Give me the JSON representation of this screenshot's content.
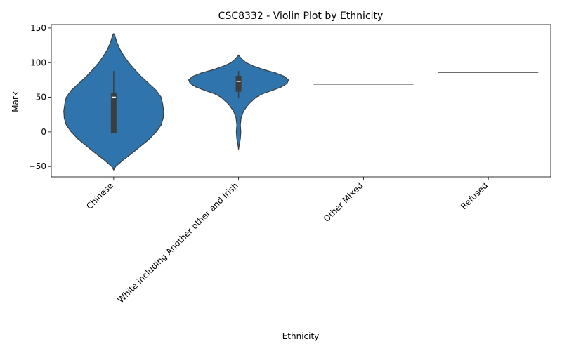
{
  "chart_data": {
    "type": "violin",
    "title": "CSC8332 - Violin Plot by Ethnicity",
    "xlabel": "Ethnicity",
    "ylabel": "Mark",
    "ylim": [
      -65,
      155
    ],
    "yticks": [
      -50,
      0,
      50,
      100,
      150
    ],
    "categories": [
      "Chinese",
      "White including Another other and Irish",
      "Other Mixed",
      "Refused"
    ],
    "violins": [
      {
        "category": "Chinese",
        "profile": [
          [
            -55,
            0
          ],
          [
            -50,
            0.04
          ],
          [
            -40,
            0.2
          ],
          [
            -30,
            0.38
          ],
          [
            -20,
            0.55
          ],
          [
            -10,
            0.72
          ],
          [
            0,
            0.85
          ],
          [
            10,
            0.95
          ],
          [
            20,
            0.99
          ],
          [
            30,
            1.0
          ],
          [
            40,
            0.98
          ],
          [
            50,
            0.95
          ],
          [
            60,
            0.85
          ],
          [
            70,
            0.7
          ],
          [
            80,
            0.55
          ],
          [
            90,
            0.42
          ],
          [
            100,
            0.3
          ],
          [
            110,
            0.2
          ],
          [
            120,
            0.12
          ],
          [
            130,
            0.06
          ],
          [
            140,
            0.02
          ],
          [
            142,
            0
          ]
        ],
        "box": {
          "q1": -2,
          "median": 50,
          "q3": 56,
          "whisker_low": -2,
          "whisker_high": 88
        }
      },
      {
        "category": "White including Another other and Irish",
        "profile": [
          [
            -25,
            0
          ],
          [
            -20,
            0.01
          ],
          [
            -10,
            0.035
          ],
          [
            0,
            0.045
          ],
          [
            10,
            0.035
          ],
          [
            20,
            0.05
          ],
          [
            30,
            0.1
          ],
          [
            40,
            0.2
          ],
          [
            50,
            0.35
          ],
          [
            55,
            0.48
          ],
          [
            60,
            0.68
          ],
          [
            65,
            0.86
          ],
          [
            70,
            0.97
          ],
          [
            75,
            1.0
          ],
          [
            80,
            0.92
          ],
          [
            85,
            0.75
          ],
          [
            90,
            0.5
          ],
          [
            95,
            0.3
          ],
          [
            100,
            0.15
          ],
          [
            105,
            0.07
          ],
          [
            109,
            0.02
          ],
          [
            111,
            0
          ]
        ],
        "box": {
          "q1": 58,
          "median": 73,
          "q3": 81,
          "whisker_low": 49,
          "whisker_high": 88
        }
      },
      {
        "category": "Other Mixed",
        "single_value": 69
      },
      {
        "category": "Refused",
        "single_value": 86
      }
    ],
    "colors": {
      "fill": "#2f74ad",
      "stroke": "#3b3b3b",
      "box": "#3d3d3d",
      "median": "#ffffff"
    },
    "grid": false,
    "legend": "none"
  }
}
